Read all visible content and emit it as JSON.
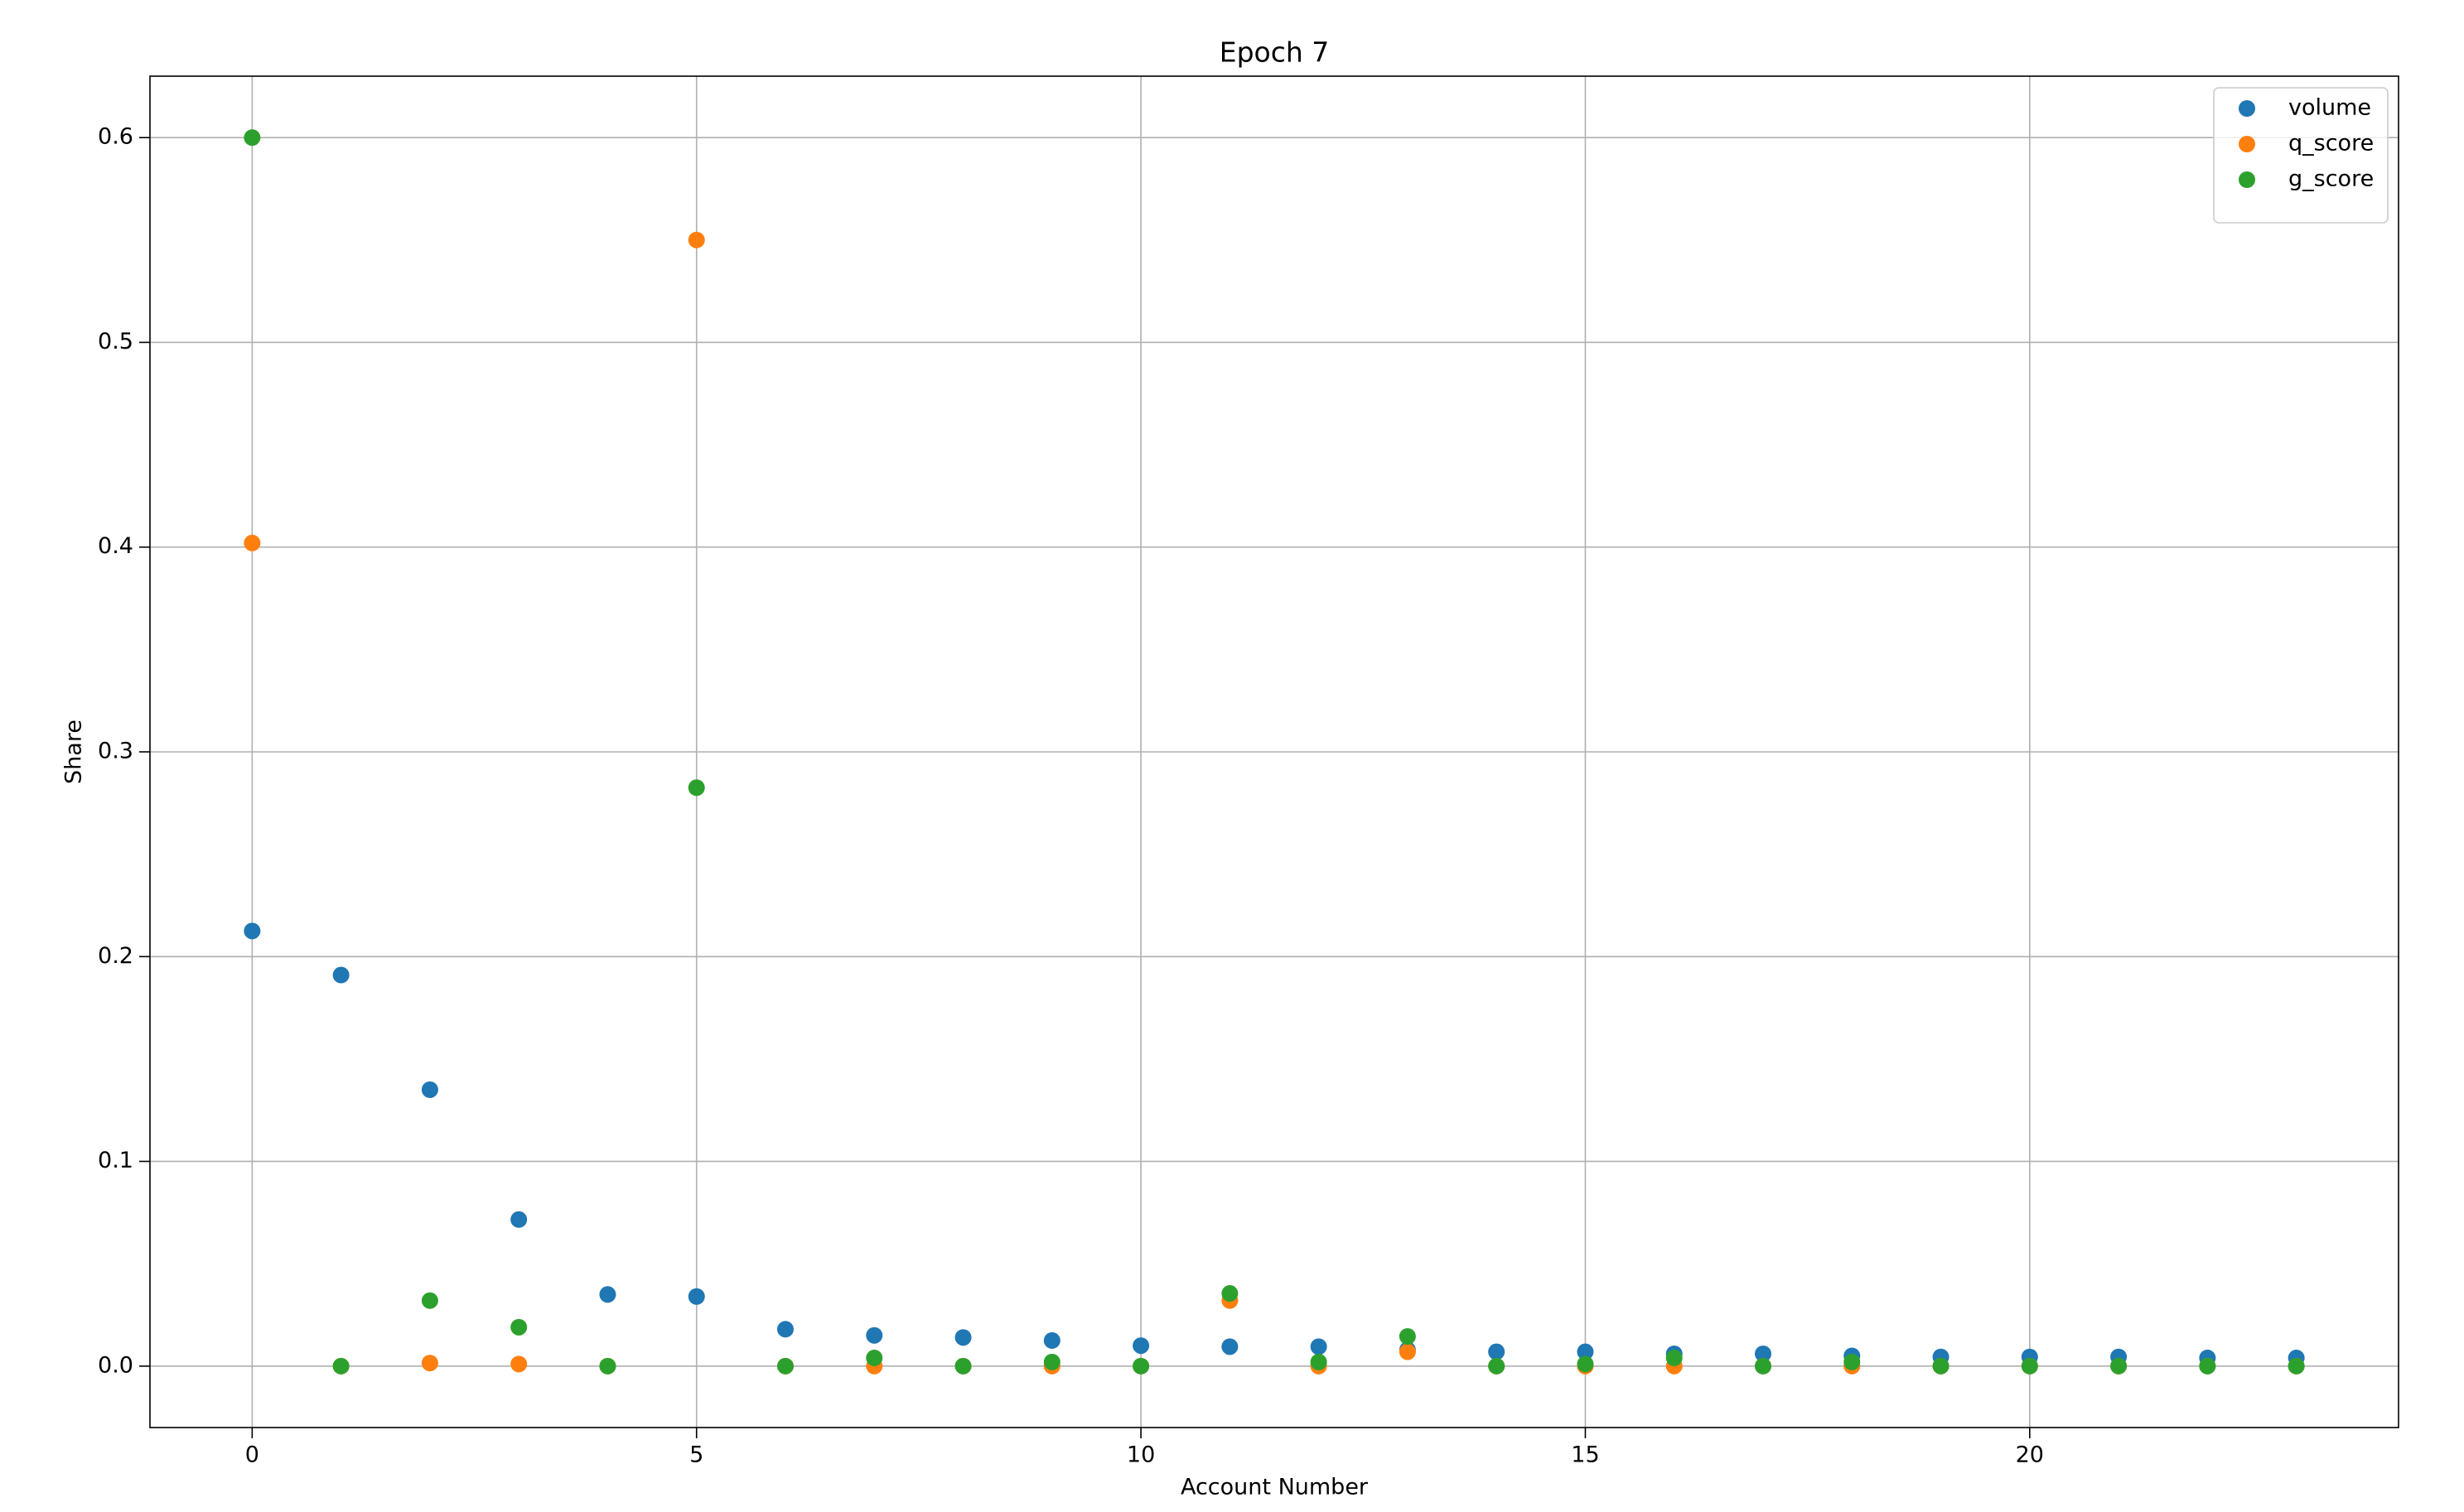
{
  "chart_data": {
    "type": "scatter",
    "title": "Epoch 7",
    "x_label": "Account Number",
    "y_label": "Share",
    "x": [
      0,
      1,
      2,
      3,
      4,
      5,
      6,
      7,
      8,
      9,
      10,
      11,
      12,
      13,
      14,
      15,
      16,
      17,
      18,
      19,
      20,
      21,
      22,
      23
    ],
    "series": [
      {
        "name": "volume",
        "color": "#1f77b4",
        "values": [
          0.2125,
          0.191,
          0.135,
          0.0716,
          0.035,
          0.034,
          0.018,
          0.015,
          0.014,
          0.0125,
          0.01,
          0.0095,
          0.0095,
          0.008,
          0.007,
          0.007,
          0.006,
          0.006,
          0.005,
          0.0045,
          0.0045,
          0.0045,
          0.004,
          0.004
        ]
      },
      {
        "name": "q_score",
        "color": "#ff7f0e",
        "values": [
          0.402,
          0,
          0.0015,
          0.001,
          0,
          0.55,
          0,
          0,
          0,
          0,
          0,
          0.032,
          0,
          0.007,
          0,
          0,
          0,
          0,
          0,
          0,
          0,
          0,
          0,
          0
        ]
      },
      {
        "name": "g_score",
        "color": "#2ca02c",
        "values": [
          0.6,
          0,
          0.032,
          0.019,
          0,
          0.2825,
          0,
          0.004,
          0,
          0.002,
          0,
          0.0355,
          0.002,
          0.0145,
          0,
          0.001,
          0.004,
          0,
          0.002,
          0,
          0,
          0,
          0,
          0
        ]
      }
    ],
    "xlim": [
      -1.15,
      24.15
    ],
    "ylim": [
      -0.03,
      0.63
    ],
    "xticks": [
      0,
      5,
      10,
      15,
      20
    ],
    "yticks": [
      {
        "value": 0,
        "label": "0.0"
      },
      0.1,
      0.2,
      0.3,
      0.4,
      0.5,
      0.6
    ],
    "grid": true,
    "legend": "upper right"
  }
}
